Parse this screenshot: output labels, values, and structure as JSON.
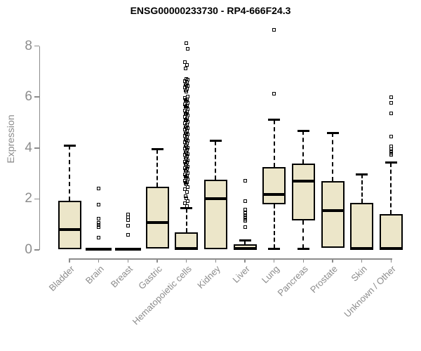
{
  "chart_data": {
    "type": "boxplot",
    "title": "ENSG00000233730 - RP4-666F24.3",
    "ylabel": "Expression",
    "xlabel": "",
    "ylim": [
      0,
      8.7
    ],
    "yticks": [
      0,
      2,
      4,
      6,
      8
    ],
    "grid": false,
    "legend": "none",
    "box_fill_color": "#ece6c9",
    "box_line_color": "#000000",
    "axis_color": "#8c8c8c",
    "categories": [
      "Bladder",
      "Brain",
      "Breast",
      "Gastric",
      "Hematopoietic cells",
      "Kidney",
      "Liver",
      "Lung",
      "Pancreas",
      "Prostate",
      "Skin",
      "Unknown / Other"
    ],
    "boxes": [
      {
        "label": "Bladder",
        "q1": 0.02,
        "median": 0.79,
        "q3": 1.93,
        "whisker_low": 0.02,
        "whisker_high": 4.1,
        "outliers": []
      },
      {
        "label": "Brain",
        "q1": 0,
        "median": 0.04,
        "q3": 0.08,
        "whisker_low": 0,
        "whisker_high": 0.08,
        "outliers": [
          2.42,
          1.77,
          1.22,
          1.05,
          0.98,
          0.9,
          0.49
        ]
      },
      {
        "label": "Breast",
        "q1": 0,
        "median": 0.04,
        "q3": 0.08,
        "whisker_low": 0,
        "whisker_high": 0.08,
        "outliers": [
          1.4,
          1.28,
          1.18,
          0.95,
          0.58
        ]
      },
      {
        "label": "Gastric",
        "q1": 0.05,
        "median": 1.08,
        "q3": 2.47,
        "whisker_low": 0.05,
        "whisker_high": 3.95,
        "outliers": []
      },
      {
        "label": "Hematopoietic cells",
        "q1": 0,
        "median": 0.05,
        "q3": 0.7,
        "whisker_low": 0,
        "whisker_high": 1.63,
        "outliers": [
          8.1,
          7.9,
          7.37,
          7.25,
          7.12,
          6.72,
          6.67,
          6.62,
          6.57,
          6.52,
          6.47,
          6.42,
          6.37,
          6.32,
          6.27,
          6.22,
          6.02,
          5.97,
          5.92,
          5.87,
          5.82,
          5.77,
          5.72,
          5.67,
          5.62,
          5.57,
          5.52,
          5.47,
          5.42,
          5.37,
          5.32,
          5.27,
          5.22,
          5.17,
          5.12,
          5.07,
          5.02,
          4.97,
          4.92,
          4.87,
          4.82,
          4.77,
          4.72,
          4.67,
          4.62,
          4.57,
          4.52,
          4.47,
          4.42,
          4.37,
          4.32,
          4.27,
          4.22,
          4.17,
          4.12,
          4.07,
          4.02,
          3.97,
          3.92,
          3.87,
          3.82,
          3.77,
          3.72,
          3.67,
          3.62,
          3.57,
          3.52,
          3.47,
          3.42,
          3.37,
          3.32,
          3.27,
          3.22,
          3.17,
          3.12,
          3.07,
          3.02,
          2.97,
          2.92,
          2.87,
          2.82,
          2.77,
          2.72,
          2.67,
          2.62,
          2.57,
          2.47,
          2.37,
          2.27,
          2.12,
          2.02,
          1.92,
          1.82,
          1.72
        ]
      },
      {
        "label": "Kidney",
        "q1": 0.02,
        "median": 2.0,
        "q3": 2.76,
        "whisker_low": 0.02,
        "whisker_high": 4.28,
        "outliers": []
      },
      {
        "label": "Liver",
        "q1": 0,
        "median": 0.05,
        "q3": 0.21,
        "whisker_low": 0,
        "whisker_high": 0.37,
        "outliers": [
          2.72,
          1.91,
          1.59,
          1.45,
          1.35,
          1.27,
          1.2,
          1.13,
          0.9
        ]
      },
      {
        "label": "Lung",
        "q1": 1.78,
        "median": 2.17,
        "q3": 3.25,
        "whisker_low": 0.05,
        "whisker_high": 5.1,
        "outliers": [
          8.63,
          6.13
        ]
      },
      {
        "label": "Pancreas",
        "q1": 1.17,
        "median": 2.7,
        "q3": 3.4,
        "whisker_low": 0.05,
        "whisker_high": 4.67,
        "outliers": []
      },
      {
        "label": "Prostate",
        "q1": 0.07,
        "median": 1.53,
        "q3": 2.7,
        "whisker_low": 0.07,
        "whisker_high": 4.6,
        "outliers": []
      },
      {
        "label": "Skin",
        "q1": 0,
        "median": 0.05,
        "q3": 1.84,
        "whisker_low": 0,
        "whisker_high": 2.97,
        "outliers": []
      },
      {
        "label": "Unknown / Other",
        "q1": 0,
        "median": 0.05,
        "q3": 1.4,
        "whisker_low": 0,
        "whisker_high": 3.42,
        "outliers": [
          6.0,
          5.77,
          5.35,
          4.46,
          4.05,
          3.95,
          3.88,
          3.8,
          3.74
        ]
      }
    ]
  }
}
